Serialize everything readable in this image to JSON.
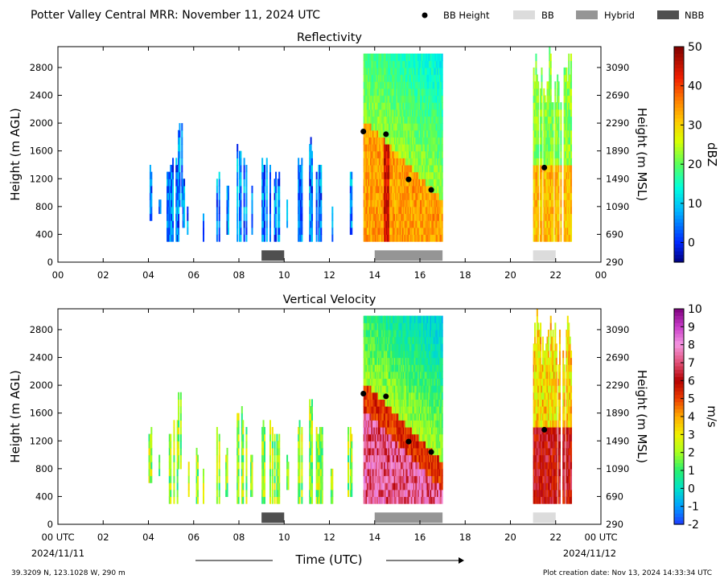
{
  "header": {
    "title": "Potter Valley Central MRR:  November 11, 2024 UTC",
    "legend": [
      {
        "label": "BB Height",
        "kind": "dot",
        "color": "#000000"
      },
      {
        "label": "BB",
        "kind": "box",
        "color": "#dcdcdc"
      },
      {
        "label": "Hybrid",
        "kind": "box",
        "color": "#959595"
      },
      {
        "label": "NBB",
        "kind": "box",
        "color": "#4f4f4f"
      }
    ]
  },
  "footer": {
    "location": "39.3209 N, 123.1028 W, 290 m",
    "created": "Plot creation date: Nov 13, 2024 14:33:34 UTC",
    "xlabel": "Time (UTC)",
    "start_date": "2024/11/11",
    "end_date": "2024/11/12"
  },
  "chart_data": [
    {
      "type": "heatmap",
      "title": "Reflectivity",
      "ylabel": "Height (m AGL)",
      "ylabel_right": "Height (m MSL)",
      "colorbar_label": "dBZ",
      "colorbar_ticks": [
        "50",
        "40",
        "30",
        "20",
        "10",
        "0"
      ],
      "colorbar_range": [
        -5,
        50
      ],
      "xlim": [
        0,
        24
      ],
      "ylim": [
        0,
        3100
      ],
      "xticks": [
        "00",
        "02",
        "04",
        "06",
        "08",
        "10",
        "12",
        "14",
        "16",
        "18",
        "20",
        "22",
        "00"
      ],
      "yticks": [
        "0",
        "400",
        "800",
        "1200",
        "1600",
        "2000",
        "2400",
        "2800"
      ],
      "yticks_right": [
        "290",
        "690",
        "1090",
        "1490",
        "1890",
        "2290",
        "2690",
        "3090"
      ],
      "bb_height": [
        {
          "time": 13.5,
          "height": 1880
        },
        {
          "time": 14.5,
          "height": 1840
        },
        {
          "time": 15.5,
          "height": 1190
        },
        {
          "time": 16.5,
          "height": 1040
        },
        {
          "time": 21.5,
          "height": 1360
        }
      ],
      "precip_type_bars": [
        {
          "start": 9.0,
          "end": 10.0,
          "type": "NBB"
        },
        {
          "start": 14.0,
          "end": 17.0,
          "type": "Hybrid"
        },
        {
          "start": 21.0,
          "end": 22.0,
          "type": "BB"
        }
      ]
    },
    {
      "type": "heatmap",
      "title": "Vertical Velocity",
      "ylabel": "Height (m AGL)",
      "ylabel_right": "Height (m MSL)",
      "colorbar_label": "m/s",
      "colorbar_ticks": [
        "10",
        "9",
        "8",
        "7",
        "6",
        "5",
        "4",
        "3",
        "2",
        "1",
        "0",
        "-1",
        "-2"
      ],
      "colorbar_range": [
        -2,
        10
      ],
      "xlim": [
        0,
        24
      ],
      "ylim": [
        0,
        3100
      ],
      "xticks": [
        "00 UTC",
        "02",
        "04",
        "06",
        "08",
        "10",
        "12",
        "14",
        "16",
        "18",
        "20",
        "22",
        "00 UTC"
      ],
      "yticks": [
        "0",
        "400",
        "800",
        "1200",
        "1600",
        "2000",
        "2400",
        "2800"
      ],
      "yticks_right": [
        "290",
        "690",
        "1090",
        "1490",
        "1890",
        "2290",
        "2690",
        "3090"
      ],
      "bb_height": [
        {
          "time": 13.5,
          "height": 1880
        },
        {
          "time": 14.5,
          "height": 1840
        },
        {
          "time": 15.5,
          "height": 1190
        },
        {
          "time": 16.5,
          "height": 1040
        },
        {
          "time": 21.5,
          "height": 1360
        }
      ],
      "precip_type_bars": [
        {
          "start": 9.0,
          "end": 10.0,
          "type": "NBB"
        },
        {
          "start": 14.0,
          "end": 17.0,
          "type": "Hybrid"
        },
        {
          "start": 21.0,
          "end": 22.0,
          "type": "BB"
        }
      ]
    }
  ]
}
